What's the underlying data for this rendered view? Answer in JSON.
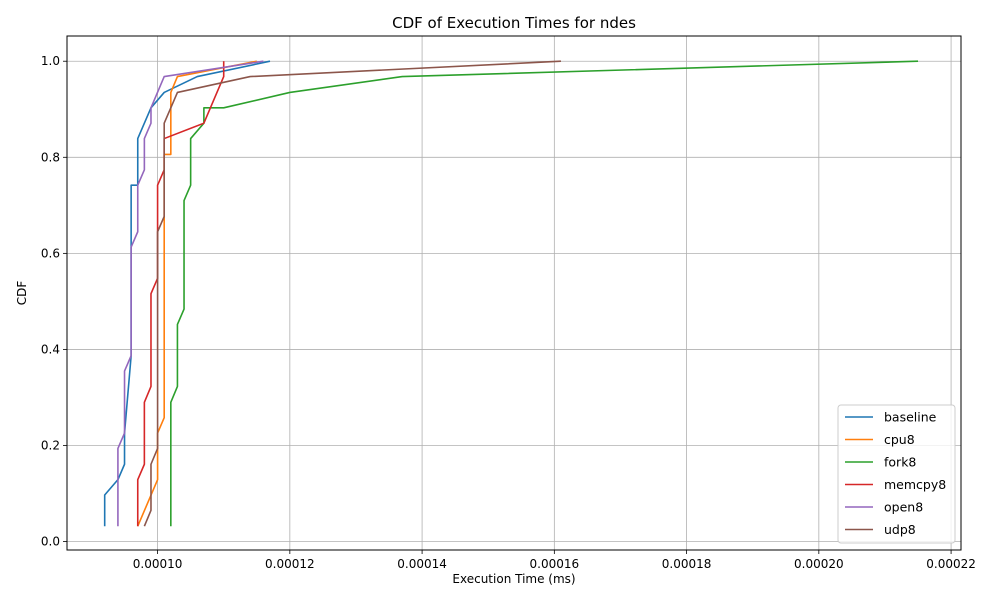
{
  "chart_data": {
    "type": "line",
    "title": "CDF of Execution Times for ndes",
    "xlabel": "Execution Time (ms)",
    "ylabel": "CDF",
    "xlim": [
      8.63e-05,
      0.0002215
    ],
    "ylim": [
      -0.0175,
      1.0525
    ],
    "xticks": [
      0.0001,
      0.00012,
      0.00014,
      0.00016,
      0.00018,
      0.0002,
      0.00022
    ],
    "xtick_labels": [
      "0.00010",
      "0.00012",
      "0.00014",
      "0.00016",
      "0.00018",
      "0.00020",
      "0.00022"
    ],
    "yticks": [
      0.0,
      0.2,
      0.4,
      0.6,
      0.8,
      1.0
    ],
    "ytick_labels": [
      "0.0",
      "0.2",
      "0.4",
      "0.6",
      "0.8",
      "1.0"
    ],
    "grid": true,
    "legend_position": "lower right",
    "series": [
      {
        "name": "baseline",
        "color": "#1f77b4",
        "points": [
          [
            9.2e-05,
            0.032
          ],
          [
            9.2e-05,
            0.097
          ],
          [
            9.4e-05,
            0.129
          ],
          [
            9.5e-05,
            0.161
          ],
          [
            9.5e-05,
            0.226
          ],
          [
            9.6e-05,
            0.387
          ],
          [
            9.6e-05,
            0.742
          ],
          [
            9.7e-05,
            0.742
          ],
          [
            9.7e-05,
            0.839
          ],
          [
            9.9e-05,
            0.903
          ],
          [
            0.000101,
            0.935
          ],
          [
            0.000106,
            0.968
          ],
          [
            0.000117,
            1.0
          ]
        ]
      },
      {
        "name": "cpu8",
        "color": "#ff7f0e",
        "points": [
          [
            9.7e-05,
            0.032
          ],
          [
            0.0001,
            0.129
          ],
          [
            0.0001,
            0.226
          ],
          [
            0.000101,
            0.258
          ],
          [
            0.000101,
            0.806
          ],
          [
            0.000102,
            0.806
          ],
          [
            0.000102,
            0.935
          ],
          [
            0.000103,
            0.968
          ],
          [
            0.000115,
            1.0
          ]
        ]
      },
      {
        "name": "fork8",
        "color": "#2ca02c",
        "points": [
          [
            0.000102,
            0.032
          ],
          [
            0.000102,
            0.29
          ],
          [
            0.000103,
            0.323
          ],
          [
            0.000103,
            0.452
          ],
          [
            0.000104,
            0.484
          ],
          [
            0.000104,
            0.71
          ],
          [
            0.000105,
            0.742
          ],
          [
            0.000105,
            0.839
          ],
          [
            0.000107,
            0.871
          ],
          [
            0.000107,
            0.903
          ],
          [
            0.00011,
            0.903
          ],
          [
            0.00012,
            0.935
          ],
          [
            0.000137,
            0.968
          ],
          [
            0.000215,
            1.0
          ]
        ]
      },
      {
        "name": "memcpy8",
        "color": "#d62728",
        "points": [
          [
            9.7e-05,
            0.032
          ],
          [
            9.7e-05,
            0.129
          ],
          [
            9.8e-05,
            0.161
          ],
          [
            9.8e-05,
            0.29
          ],
          [
            9.9e-05,
            0.323
          ],
          [
            9.9e-05,
            0.516
          ],
          [
            0.0001,
            0.548
          ],
          [
            0.0001,
            0.742
          ],
          [
            0.000101,
            0.774
          ],
          [
            0.000101,
            0.839
          ],
          [
            0.000107,
            0.871
          ],
          [
            0.00011,
            0.968
          ],
          [
            0.00011,
            1.0
          ]
        ]
      },
      {
        "name": "open8",
        "color": "#9467bd",
        "points": [
          [
            9.4e-05,
            0.032
          ],
          [
            9.4e-05,
            0.194
          ],
          [
            9.5e-05,
            0.226
          ],
          [
            9.5e-05,
            0.355
          ],
          [
            9.6e-05,
            0.387
          ],
          [
            9.6e-05,
            0.613
          ],
          [
            9.7e-05,
            0.645
          ],
          [
            9.7e-05,
            0.742
          ],
          [
            9.8e-05,
            0.774
          ],
          [
            9.8e-05,
            0.839
          ],
          [
            9.9e-05,
            0.871
          ],
          [
            9.9e-05,
            0.903
          ],
          [
            0.000101,
            0.968
          ],
          [
            0.000116,
            1.0
          ]
        ]
      },
      {
        "name": "udp8",
        "color": "#8c564b",
        "points": [
          [
            9.8e-05,
            0.032
          ],
          [
            9.9e-05,
            0.065
          ],
          [
            9.9e-05,
            0.161
          ],
          [
            0.0001,
            0.194
          ],
          [
            0.0001,
            0.645
          ],
          [
            0.000101,
            0.677
          ],
          [
            0.000101,
            0.871
          ],
          [
            0.000103,
            0.935
          ],
          [
            0.000114,
            0.968
          ],
          [
            0.000161,
            1.0
          ]
        ]
      }
    ]
  }
}
